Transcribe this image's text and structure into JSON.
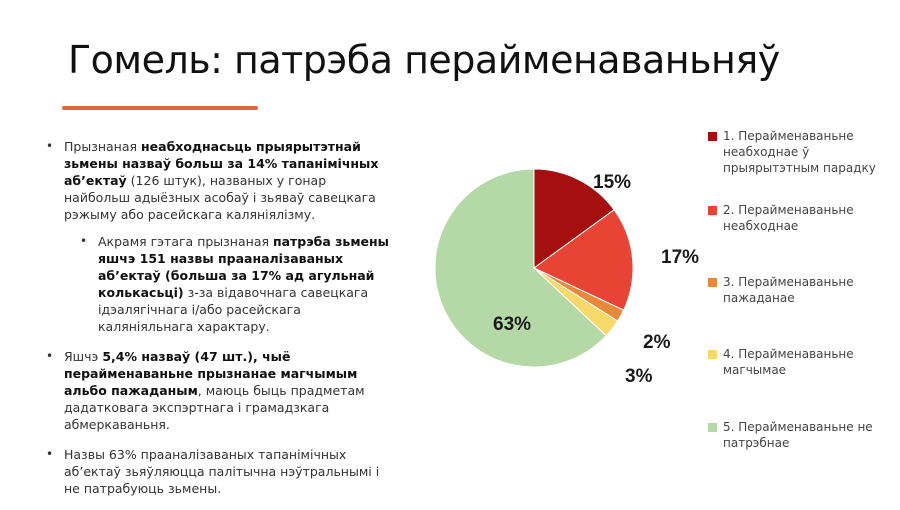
{
  "slide": {
    "title": "Гомель: патрэба перайменаваньняў"
  },
  "bullets": [
    {
      "parts": [
        {
          "text": "Прызнаная ",
          "bold": false
        },
        {
          "text": "неабходнасьць прыярытэтнай зьмены назваў больш за 14% тапанімічных аб’ектаў",
          "bold": true
        },
        {
          "text": " (126 штук), названых у гонар найбольш адыёзных асобаў і зьяваў савецкага рэжыму або расейскага каляніялізму.",
          "bold": false
        }
      ]
    },
    {
      "sub": true,
      "parts": [
        {
          "text": "Акрамя гэтага прызнаная ",
          "bold": false
        },
        {
          "text": "патрэба зьмены яшчэ 151 назвы прааналізаваных аб’ектаў (больша за 17% ад агульнай колькасьці)",
          "bold": true
        },
        {
          "text": " з-за відавочнага савецкага ідэалягічнага і/або расейскага каляніяльнага характару.",
          "bold": false
        }
      ]
    },
    {
      "parts": [
        {
          "text": "Яшчэ ",
          "bold": false
        },
        {
          "text": "5,4% назваў (47 шт.), чыё перайменаваньне прызнанае магчымым альбо пажаданым",
          "bold": true
        },
        {
          "text": ", маюць быць прадметам дадатковага экспэртнага і грамадзкага абмеркаваньня.",
          "bold": false
        }
      ]
    },
    {
      "parts": [
        {
          "text": "Назвы 63% прааналізаваных тапанімічных аб’ектаў зьяўляюцца палітычна нэўтральнымі і не патрабуюць зьмены.",
          "bold": false
        }
      ]
    }
  ],
  "chart_data": {
    "type": "pie",
    "start_angle_deg": 0,
    "direction": "clockwise",
    "legend_position": "right",
    "series": [
      {
        "name": "1. Перайменаваньне неабходнае ў прыярытэтным парадку",
        "value": 15,
        "label": "15%",
        "color": "#a50f0f"
      },
      {
        "name": "2. Перайменаваньне неабходнае",
        "value": 17,
        "label": "17%",
        "color": "#e84436"
      },
      {
        "name": "3. Перайменаваньне пажаданае",
        "value": 2,
        "label": "2%",
        "color": "#e8883a"
      },
      {
        "name": "4. Перайменаваньне магчымае",
        "value": 3,
        "label": "3%",
        "color": "#f6d86b"
      },
      {
        "name": "5. Перайменаваньне не патрэбнае",
        "value": 63,
        "label": "63%",
        "color": "#b5d8a7"
      }
    ]
  }
}
